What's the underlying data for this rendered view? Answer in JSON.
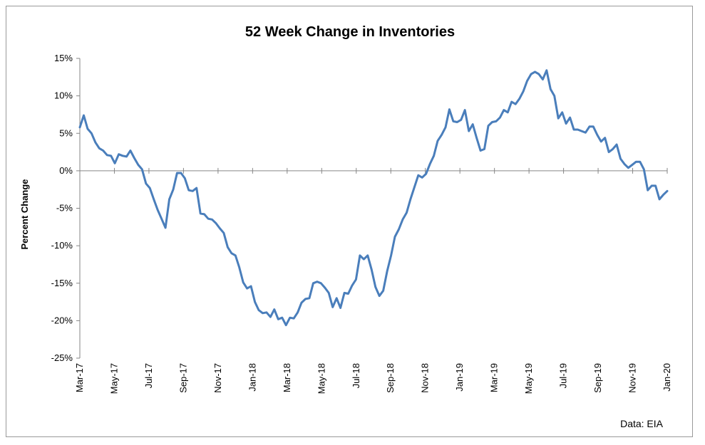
{
  "chart_data": {
    "type": "line",
    "title": "52 Week Change in Inventories",
    "xlabel": "",
    "ylabel": "Percent Change",
    "source_note": "Data: EIA",
    "ylim": [
      -25,
      15
    ],
    "y_ticks": [
      15,
      10,
      5,
      0,
      -5,
      -10,
      -15,
      -20,
      -25
    ],
    "y_tick_labels": [
      "15%",
      "10%",
      "5%",
      "0%",
      "-5%",
      "-10%",
      "-15%",
      "-20%",
      "-25%"
    ],
    "x_tick_labels": [
      "Mar-17",
      "May-17",
      "Jul-17",
      "Sep-17",
      "Nov-17",
      "Jan-18",
      "Mar-18",
      "May-18",
      "Jul-18",
      "Sep-18",
      "Nov-18",
      "Jan-19",
      "Mar-19",
      "May-19",
      "Jul-19",
      "Sep-19",
      "Nov-19",
      "Jan-20"
    ],
    "grid": false,
    "line_color": "#4a7ebb",
    "series": [
      {
        "values": [
          5.8,
          7.4,
          5.6,
          5.0,
          3.8,
          3.0,
          2.7,
          2.1,
          2.0,
          1.0,
          2.2,
          2.0,
          1.9,
          2.7,
          1.7,
          0.8,
          0.2,
          -1.7,
          -2.3,
          -3.8,
          -5.2,
          -6.4,
          -7.6,
          -3.8,
          -2.5,
          -0.3,
          -0.3,
          -1.0,
          -2.6,
          -2.7,
          -2.3,
          -5.7,
          -5.8,
          -6.4,
          -6.5,
          -7.0,
          -7.7,
          -8.3,
          -10.2,
          -11.0,
          -11.3,
          -12.9,
          -14.9,
          -15.7,
          -15.4,
          -17.5,
          -18.6,
          -19.0,
          -18.9,
          -19.5,
          -18.5,
          -19.8,
          -19.6,
          -20.6,
          -19.6,
          -19.7,
          -18.9,
          -17.6,
          -17.1,
          -17.0,
          -15.0,
          -14.8,
          -15.0,
          -15.6,
          -16.3,
          -18.2,
          -17.0,
          -18.3,
          -16.3,
          -16.4,
          -15.3,
          -14.5,
          -11.3,
          -11.8,
          -11.3,
          -13.2,
          -15.5,
          -16.7,
          -16.0,
          -13.4,
          -11.3,
          -8.8,
          -7.8,
          -6.5,
          -5.6,
          -3.8,
          -2.2,
          -0.6,
          -0.9,
          -0.4,
          0.9,
          2.0,
          4.0,
          4.8,
          5.8,
          8.2,
          6.6,
          6.5,
          6.8,
          8.1,
          5.3,
          6.2,
          4.4,
          2.7,
          2.9,
          6.0,
          6.5,
          6.6,
          7.1,
          8.1,
          7.8,
          9.2,
          8.9,
          9.6,
          10.6,
          12.0,
          12.9,
          13.2,
          12.9,
          12.2,
          13.4,
          10.9,
          10.0,
          7.0,
          7.8,
          6.3,
          7.1,
          5.5,
          5.5,
          5.3,
          5.1,
          5.9,
          5.9,
          4.8,
          3.9,
          4.4,
          2.5,
          2.9,
          3.5,
          1.6,
          0.9,
          0.4,
          0.8,
          1.2,
          1.2,
          0.2,
          -2.6,
          -2.0,
          -2.0,
          -3.8,
          -3.2,
          -2.7
        ]
      }
    ]
  }
}
